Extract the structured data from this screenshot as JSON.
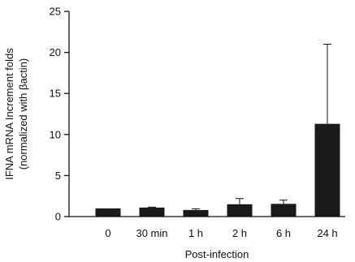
{
  "chart_data": {
    "type": "bar",
    "title": "",
    "xlabel": "Post-infection",
    "ylabel_line1": "IFNA mRNA Increment folds",
    "ylabel_line2": "(normalized with βactin)",
    "categories": [
      "0",
      "30 min",
      "1 h",
      "2 h",
      "6 h",
      "24 h"
    ],
    "series": [
      {
        "values": [
          1.0,
          1.1,
          0.8,
          1.5,
          1.55,
          11.3
        ],
        "error_upper": [
          0.0,
          0.05,
          0.15,
          0.7,
          0.45,
          9.7
        ]
      }
    ],
    "ylim": [
      0,
      25
    ],
    "yticks": [
      0,
      5,
      10,
      15,
      20,
      25
    ],
    "grid": false,
    "legend": "none",
    "bar_color": "#1a1a1a"
  }
}
